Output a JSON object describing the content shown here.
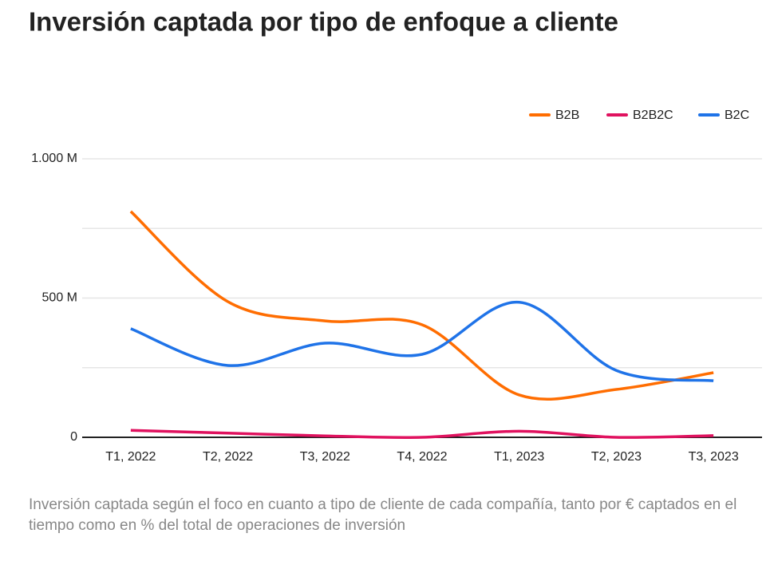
{
  "chart_data": {
    "type": "line",
    "title": "Inversión captada por tipo de enfoque a cliente",
    "caption": "Inversión captada según el foco en cuanto a tipo de cliente de cada compañía, tanto por € captados en el tiempo como en % del total de operaciones de inversión",
    "categories": [
      "T1, 2022",
      "T2, 2022",
      "T3, 2022",
      "T4, 2022",
      "T1, 2023",
      "T2, 2023",
      "T3, 2023"
    ],
    "series": [
      {
        "name": "B2B",
        "color": "#ff6d01",
        "values": [
          811,
          487,
          418,
          404,
          152,
          172,
          232
        ]
      },
      {
        "name": "B2B2C",
        "color": "#e0125f",
        "values": [
          25,
          15,
          5,
          0,
          22,
          0,
          6
        ]
      },
      {
        "name": "B2C",
        "color": "#1f73e8",
        "values": [
          390,
          258,
          338,
          298,
          485,
          240,
          203
        ]
      }
    ],
    "ylim": [
      0,
      1000
    ],
    "yticks": [
      0,
      {
        "value": 500,
        "label": "500 M"
      },
      {
        "value": 1000,
        "label": "1.000 M"
      }
    ],
    "minor_yticks": [
      250,
      750
    ],
    "grid": true,
    "legend": "top-right",
    "smooth": true
  }
}
